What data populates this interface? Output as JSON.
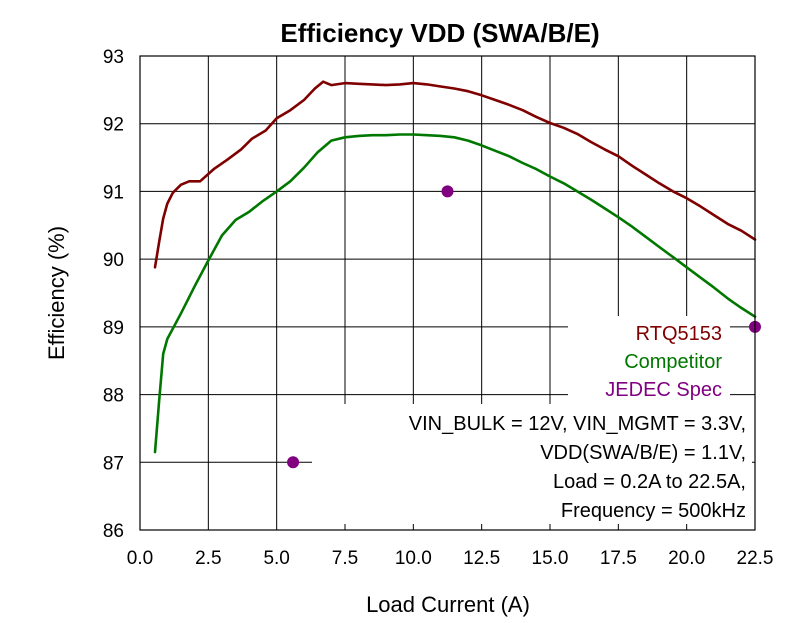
{
  "chart_data": {
    "type": "line",
    "title": "Efficiency VDD (SWA/B/E)",
    "xlabel": "Load Current (A)",
    "ylabel": "Efficiency (%)",
    "xlim": [
      0,
      22.5
    ],
    "ylim": [
      86,
      93
    ],
    "grid": true,
    "x_ticks": [
      "0.0",
      "2.5",
      "5.0",
      "7.5",
      "10.0",
      "12.5",
      "15.0",
      "17.5",
      "20.0",
      "22.5"
    ],
    "x_tick_values": [
      0,
      2.5,
      5,
      7.5,
      10,
      12.5,
      15,
      17.5,
      20,
      22.5
    ],
    "y_ticks": [
      "86",
      "87",
      "88",
      "89",
      "90",
      "91",
      "92",
      "93"
    ],
    "y_tick_values": [
      86,
      87,
      88,
      89,
      90,
      91,
      92,
      93
    ],
    "series": [
      {
        "name": "RTQ5153",
        "color": "#7f0000",
        "kind": "line",
        "points": [
          [
            0.55,
            89.88
          ],
          [
            0.7,
            90.25
          ],
          [
            0.85,
            90.6
          ],
          [
            1.0,
            90.82
          ],
          [
            1.2,
            90.98
          ],
          [
            1.5,
            91.1
          ],
          [
            1.8,
            91.15
          ],
          [
            2.2,
            91.15
          ],
          [
            2.7,
            91.33
          ],
          [
            3.2,
            91.47
          ],
          [
            3.7,
            91.62
          ],
          [
            4.1,
            91.78
          ],
          [
            4.6,
            91.9
          ],
          [
            5.0,
            92.08
          ],
          [
            5.5,
            92.2
          ],
          [
            6.0,
            92.35
          ],
          [
            6.4,
            92.52
          ],
          [
            6.7,
            92.62
          ],
          [
            7.0,
            92.57
          ],
          [
            7.5,
            92.6
          ],
          [
            8.0,
            92.59
          ],
          [
            8.5,
            92.58
          ],
          [
            9.0,
            92.57
          ],
          [
            9.5,
            92.58
          ],
          [
            10.0,
            92.6
          ],
          [
            10.5,
            92.58
          ],
          [
            11.0,
            92.55
          ],
          [
            11.5,
            92.52
          ],
          [
            12.0,
            92.48
          ],
          [
            12.5,
            92.42
          ],
          [
            13.0,
            92.35
          ],
          [
            13.5,
            92.28
          ],
          [
            14.0,
            92.2
          ],
          [
            14.5,
            92.1
          ],
          [
            15.0,
            92.01
          ],
          [
            15.5,
            91.94
          ],
          [
            16.0,
            91.85
          ],
          [
            16.5,
            91.73
          ],
          [
            17.0,
            91.62
          ],
          [
            17.5,
            91.52
          ],
          [
            18.0,
            91.38
          ],
          [
            18.5,
            91.25
          ],
          [
            19.0,
            91.12
          ],
          [
            19.5,
            91.0
          ],
          [
            20.0,
            90.9
          ],
          [
            20.5,
            90.78
          ],
          [
            21.0,
            90.65
          ],
          [
            21.5,
            90.52
          ],
          [
            22.0,
            90.42
          ],
          [
            22.5,
            90.29
          ]
        ]
      },
      {
        "name": "Competitor",
        "color": "#007800",
        "kind": "line",
        "points": [
          [
            0.55,
            87.15
          ],
          [
            0.7,
            87.9
          ],
          [
            0.85,
            88.6
          ],
          [
            1.0,
            88.82
          ],
          [
            1.5,
            89.2
          ],
          [
            2.0,
            89.6
          ],
          [
            2.5,
            89.98
          ],
          [
            3.0,
            90.35
          ],
          [
            3.5,
            90.58
          ],
          [
            4.0,
            90.7
          ],
          [
            4.5,
            90.86
          ],
          [
            5.0,
            91.0
          ],
          [
            5.5,
            91.15
          ],
          [
            6.0,
            91.35
          ],
          [
            6.5,
            91.58
          ],
          [
            7.0,
            91.75
          ],
          [
            7.5,
            91.8
          ],
          [
            8.0,
            91.82
          ],
          [
            8.5,
            91.83
          ],
          [
            9.0,
            91.83
          ],
          [
            9.5,
            91.84
          ],
          [
            10.0,
            91.84
          ],
          [
            10.5,
            91.83
          ],
          [
            11.0,
            91.82
          ],
          [
            11.5,
            91.8
          ],
          [
            12.0,
            91.75
          ],
          [
            12.5,
            91.68
          ],
          [
            13.0,
            91.6
          ],
          [
            13.5,
            91.52
          ],
          [
            14.0,
            91.42
          ],
          [
            14.5,
            91.33
          ],
          [
            15.0,
            91.22
          ],
          [
            15.5,
            91.12
          ],
          [
            16.0,
            91.0
          ],
          [
            16.5,
            90.88
          ],
          [
            17.0,
            90.75
          ],
          [
            17.5,
            90.62
          ],
          [
            18.0,
            90.48
          ],
          [
            18.5,
            90.33
          ],
          [
            19.0,
            90.18
          ],
          [
            19.5,
            90.03
          ],
          [
            20.0,
            89.88
          ],
          [
            20.5,
            89.73
          ],
          [
            21.0,
            89.58
          ],
          [
            21.5,
            89.42
          ],
          [
            22.0,
            89.28
          ],
          [
            22.5,
            89.15
          ]
        ]
      },
      {
        "name": "JEDEC Spec",
        "color": "#800080",
        "kind": "scatter",
        "points": [
          [
            5.6,
            87.0
          ],
          [
            11.25,
            91.0
          ],
          [
            22.5,
            89.0
          ]
        ]
      }
    ],
    "legend": {
      "placement": "right-middle",
      "entries": [
        "RTQ5153",
        "Competitor",
        "JEDEC Spec"
      ]
    },
    "annotation": {
      "lines": [
        "VIN_BULK = 12V, VIN_MGMT = 3.3V,",
        "VDD(SWA/B/E) = 1.1V,",
        "Load = 0.2A to 22.5A,",
        "Frequency = 500kHz"
      ]
    }
  }
}
